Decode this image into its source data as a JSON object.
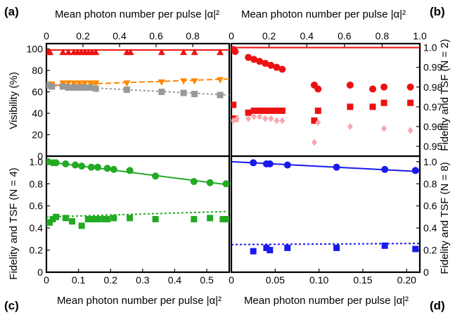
{
  "figure": {
    "top_axis_label": "Mean photon number per pulse |α|²",
    "bottom_axis_label": "Mean photon number per pulse |α|²"
  },
  "chart_data": [
    {
      "panel": "(a)",
      "type": "scatter",
      "xlabel": "Mean photon number per pulse |α|²",
      "ylabel": "Visibility (%)",
      "xlim": [
        0,
        1.0
      ],
      "ylim": [
        0,
        105
      ],
      "xticks": [
        "0",
        "0.2",
        "0.4",
        "0.6",
        "0.8"
      ],
      "yticks": [
        "0",
        "20",
        "40",
        "60",
        "80",
        "100"
      ],
      "series": [
        {
          "marker": "triangle-up",
          "color": "#ee1111",
          "fit": {
            "type": "solid",
            "x0": 0,
            "y0": 99,
            "x1": 1.0,
            "y1": 99
          },
          "points": [
            [
              0.01,
              97
            ],
            [
              0.02,
              97
            ],
            [
              0.09,
              97
            ],
            [
              0.12,
              97
            ],
            [
              0.15,
              97
            ],
            [
              0.17,
              97
            ],
            [
              0.19,
              97
            ],
            [
              0.21,
              97
            ],
            [
              0.23,
              97
            ],
            [
              0.25,
              97
            ],
            [
              0.27,
              97
            ],
            [
              0.44,
              97
            ],
            [
              0.46,
              97
            ],
            [
              0.63,
              97
            ],
            [
              0.75,
              97
            ],
            [
              0.81,
              97
            ],
            [
              0.95,
              97
            ]
          ]
        },
        {
          "marker": "triangle-down",
          "color": "#ff8800",
          "fit": {
            "type": "dashed",
            "x0": 0,
            "y0": 66,
            "x1": 1.0,
            "y1": 72
          },
          "points": [
            [
              0.01,
              67
            ],
            [
              0.03,
              67
            ],
            [
              0.09,
              68
            ],
            [
              0.12,
              68
            ],
            [
              0.15,
              68
            ],
            [
              0.18,
              68
            ],
            [
              0.21,
              68
            ],
            [
              0.24,
              68
            ],
            [
              0.27,
              68
            ],
            [
              0.44,
              68
            ],
            [
              0.63,
              69
            ],
            [
              0.75,
              70
            ],
            [
              0.81,
              70
            ],
            [
              0.95,
              71
            ]
          ]
        },
        {
          "marker": "square",
          "color": "#999999",
          "fit": {
            "type": "dotted",
            "x0": 0,
            "y0": 66,
            "x1": 1.0,
            "y1": 57
          },
          "points": [
            [
              0.01,
              66
            ],
            [
              0.03,
              65
            ],
            [
              0.09,
              65
            ],
            [
              0.12,
              64
            ],
            [
              0.15,
              64
            ],
            [
              0.18,
              64
            ],
            [
              0.21,
              64
            ],
            [
              0.24,
              64
            ],
            [
              0.27,
              63
            ],
            [
              0.44,
              62
            ],
            [
              0.63,
              60
            ],
            [
              0.75,
              59
            ],
            [
              0.81,
              58
            ],
            [
              0.95,
              57
            ]
          ]
        }
      ]
    },
    {
      "panel": "(b)",
      "type": "scatter",
      "ylabel": "Fidelity and TSF (N = 2)",
      "xlim": [
        0,
        1.0
      ],
      "ylim": [
        0.945,
        1.002
      ],
      "xticks": [
        "0",
        "0.2",
        "0.4",
        "0.6",
        "0.8",
        "1.0"
      ],
      "yticks": [
        "0.95",
        "0.96",
        "0.97",
        "0.98",
        "0.99",
        "1.0"
      ],
      "series": [
        {
          "marker": "circle",
          "color": "#ee1111",
          "fit": {
            "type": "solid",
            "x0": 0,
            "y0": 1.0,
            "x1": 1.0,
            "y1": 1.0
          },
          "points": [
            [
              0.01,
              0.999
            ],
            [
              0.02,
              0.998
            ],
            [
              0.09,
              0.995
            ],
            [
              0.12,
              0.994
            ],
            [
              0.15,
              0.993
            ],
            [
              0.18,
              0.992
            ],
            [
              0.21,
              0.991
            ],
            [
              0.24,
              0.99
            ],
            [
              0.27,
              0.989
            ],
            [
              0.44,
              0.981
            ],
            [
              0.46,
              0.979
            ],
            [
              0.63,
              0.981
            ],
            [
              0.75,
              0.979
            ],
            [
              0.81,
              0.98
            ],
            [
              0.95,
              0.98
            ]
          ]
        },
        {
          "marker": "square",
          "color": "#ee1111",
          "points": [
            [
              0.01,
              0.971
            ],
            [
              0.02,
              0.964
            ],
            [
              0.09,
              0.967
            ],
            [
              0.12,
              0.968
            ],
            [
              0.15,
              0.968
            ],
            [
              0.18,
              0.968
            ],
            [
              0.21,
              0.968
            ],
            [
              0.24,
              0.968
            ],
            [
              0.27,
              0.968
            ],
            [
              0.44,
              0.963
            ],
            [
              0.46,
              0.968
            ],
            [
              0.63,
              0.97
            ],
            [
              0.75,
              0.97
            ],
            [
              0.81,
              0.972
            ],
            [
              0.95,
              0.972
            ]
          ]
        },
        {
          "marker": "diamond",
          "color": "#f8a8b0",
          "points": [
            [
              0.01,
              0.963
            ],
            [
              0.03,
              0.964
            ],
            [
              0.09,
              0.964
            ],
            [
              0.12,
              0.965
            ],
            [
              0.15,
              0.965
            ],
            [
              0.18,
              0.964
            ],
            [
              0.21,
              0.964
            ],
            [
              0.24,
              0.963
            ],
            [
              0.27,
              0.963
            ],
            [
              0.44,
              0.952
            ],
            [
              0.46,
              0.962
            ],
            [
              0.63,
              0.96
            ],
            [
              0.81,
              0.959
            ],
            [
              0.95,
              0.958
            ]
          ]
        }
      ]
    },
    {
      "panel": "(c)",
      "type": "scatter",
      "xlabel": "Mean photon number per pulse |α|²",
      "ylabel": "Fidelity and TSF (N = 4)",
      "xlim": [
        0,
        0.57
      ],
      "ylim": [
        0,
        1.05
      ],
      "xticks": [
        "0",
        "0.1",
        "0.2",
        "0.3",
        "0.4",
        "0.5"
      ],
      "yticks": [
        "0",
        "0.2",
        "0.4",
        "0.6",
        "0.8",
        "1.0"
      ],
      "series": [
        {
          "marker": "circle",
          "color": "#22aa22",
          "fit": {
            "type": "solid",
            "x0": 0,
            "y0": 1.0,
            "x1": 0.57,
            "y1": 0.79
          },
          "points": [
            [
              0.005,
              1.0
            ],
            [
              0.02,
              0.99
            ],
            [
              0.03,
              0.99
            ],
            [
              0.06,
              0.98
            ],
            [
              0.09,
              0.97
            ],
            [
              0.11,
              0.96
            ],
            [
              0.14,
              0.95
            ],
            [
              0.16,
              0.95
            ],
            [
              0.19,
              0.94
            ],
            [
              0.21,
              0.93
            ],
            [
              0.26,
              0.92
            ],
            [
              0.34,
              0.87
            ],
            [
              0.46,
              0.82
            ],
            [
              0.51,
              0.81
            ],
            [
              0.56,
              0.8
            ]
          ]
        },
        {
          "marker": "square",
          "color": "#22aa22",
          "fit": {
            "type": "dotted",
            "x0": 0,
            "y0": 0.5,
            "x1": 0.57,
            "y1": 0.55
          },
          "points": [
            [
              0.005,
              0.45
            ],
            [
              0.01,
              0.45
            ],
            [
              0.02,
              0.48
            ],
            [
              0.03,
              0.5
            ],
            [
              0.06,
              0.49
            ],
            [
              0.08,
              0.46
            ],
            [
              0.11,
              0.42
            ],
            [
              0.13,
              0.48
            ],
            [
              0.14,
              0.48
            ],
            [
              0.15,
              0.48
            ],
            [
              0.16,
              0.48
            ],
            [
              0.18,
              0.48
            ],
            [
              0.19,
              0.48
            ],
            [
              0.21,
              0.49
            ],
            [
              0.26,
              0.49
            ],
            [
              0.34,
              0.48
            ],
            [
              0.46,
              0.48
            ],
            [
              0.51,
              0.49
            ],
            [
              0.55,
              0.48
            ],
            [
              0.56,
              0.48
            ]
          ]
        }
      ]
    },
    {
      "panel": "(d)",
      "type": "scatter",
      "xlabel": "Mean photon number per pulse |α|²",
      "ylabel": "Fidelity and TSF (N = 8)",
      "xlim": [
        0,
        0.215
      ],
      "ylim": [
        0,
        1.05
      ],
      "xticks": [
        "0",
        "0.05",
        "0.10",
        "0.15",
        "0.20"
      ],
      "yticks": [
        "0",
        "0.2",
        "0.4",
        "0.6",
        "0.8",
        "1.0"
      ],
      "series": [
        {
          "marker": "circle",
          "color": "#1a1aee",
          "fit": {
            "type": "solid",
            "x0": 0,
            "y0": 1.0,
            "x1": 0.215,
            "y1": 0.91
          },
          "points": [
            [
              0.025,
              0.99
            ],
            [
              0.04,
              0.98
            ],
            [
              0.044,
              0.98
            ],
            [
              0.064,
              0.97
            ],
            [
              0.12,
              0.95
            ],
            [
              0.175,
              0.93
            ],
            [
              0.21,
              0.92
            ]
          ]
        },
        {
          "marker": "square",
          "color": "#1a1aee",
          "fit": {
            "type": "dotted",
            "x0": 0,
            "y0": 0.25,
            "x1": 0.215,
            "y1": 0.26
          },
          "points": [
            [
              0.025,
              0.19
            ],
            [
              0.04,
              0.22
            ],
            [
              0.044,
              0.2
            ],
            [
              0.064,
              0.22
            ],
            [
              0.12,
              0.22
            ],
            [
              0.175,
              0.24
            ],
            [
              0.21,
              0.21
            ]
          ]
        }
      ]
    }
  ]
}
